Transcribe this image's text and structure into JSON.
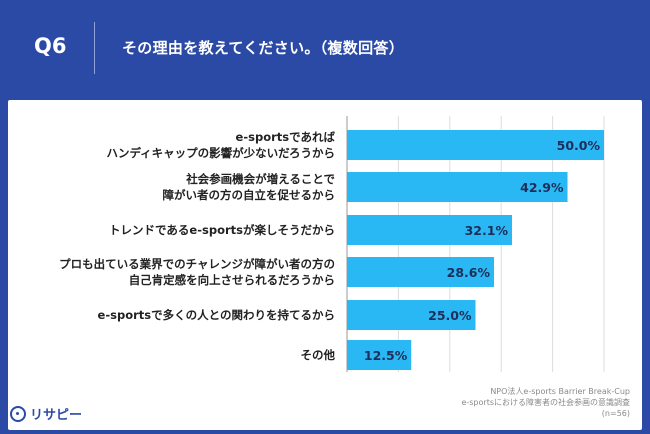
{
  "header": {
    "qnum": "Q6",
    "title": "その理由を教えてください。（複数回答）"
  },
  "source": {
    "line1": "NPO法人e-sports Barrier Break-Cup",
    "line2": "e-sportsにおける障害者の社会参画の意識調査",
    "line3": "(n=56)"
  },
  "logo": {
    "text": "リサピー",
    "icon": "lightbulb-circle-icon"
  },
  "colors": {
    "bar": "#2ab8f5",
    "header_bg": "#2b4aa6"
  },
  "chart_data": {
    "type": "bar",
    "orientation": "horizontal",
    "categories": [
      [
        "e-sportsであれば",
        "ハンディキャップの影響が少ないだろうから"
      ],
      [
        "社会参画機会が増えることで",
        "障がい者の方の自立を促せるから"
      ],
      [
        "トレンドであるe-sportsが楽しそうだから"
      ],
      [
        "プロも出ている業界でのチャレンジが障がい者の方の",
        "自己肯定感を向上させられるだろうから"
      ],
      [
        "e-sportsで多くの人との関わりを持てるから"
      ],
      [
        "その他"
      ]
    ],
    "values": [
      50.0,
      42.9,
      32.1,
      28.6,
      25.0,
      12.5
    ],
    "value_labels": [
      "50.0%",
      "42.9%",
      "32.1%",
      "28.6%",
      "25.0%",
      "12.5%"
    ],
    "xlim": [
      0,
      60
    ],
    "grid": true,
    "title": "",
    "xlabel": "",
    "ylabel": ""
  }
}
